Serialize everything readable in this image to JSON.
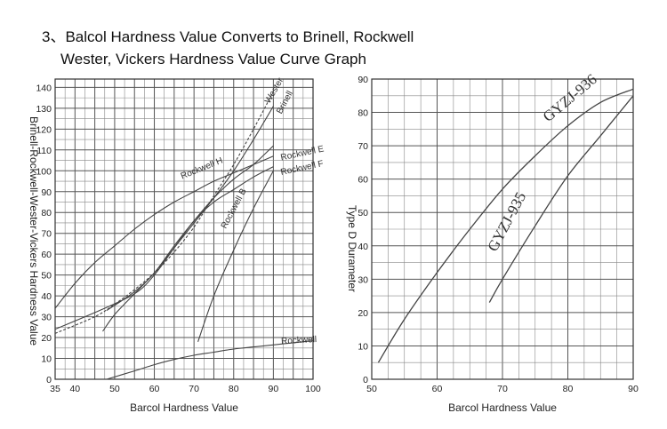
{
  "title": {
    "line1": "3、Balcol Hardness Value Converts to Brinell, Rockwell",
    "line2": "Wester, Vickers Hardness Value Curve Graph"
  },
  "chart_data": [
    {
      "type": "line",
      "xlabel": "Barcol Hardness Value",
      "ylabel": "Brinell-Rockwell-Wester-Vickers Hardness Value",
      "xlim": [
        35,
        100
      ],
      "ylim": [
        0,
        144
      ],
      "x_ticks": [
        35,
        40,
        50,
        60,
        70,
        80,
        90,
        100
      ],
      "y_ticks": [
        0,
        10,
        20,
        30,
        40,
        50,
        60,
        70,
        80,
        90,
        100,
        110,
        120,
        130,
        140
      ],
      "series": [
        {
          "name": "Rockwell H",
          "x": [
            35,
            40,
            45,
            50,
            55,
            60,
            65,
            70,
            75,
            80,
            85,
            90
          ],
          "y": [
            34,
            46,
            56,
            64,
            72,
            79,
            85,
            90,
            95,
            99,
            103,
            107
          ],
          "dash": false,
          "label_at": [
            67,
            96
          ]
        },
        {
          "name": "Wester",
          "x": [
            35,
            45,
            50,
            55,
            60,
            65,
            70,
            75,
            80,
            85,
            90
          ],
          "y": [
            22,
            30,
            36,
            43,
            51,
            61,
            73,
            88,
            103,
            120,
            138
          ],
          "dash": true,
          "label_at": [
            89,
            132
          ]
        },
        {
          "name": "Brinell",
          "x": [
            47,
            50,
            55,
            60,
            65,
            70,
            75,
            80,
            85,
            90
          ],
          "y": [
            23,
            31,
            41,
            51,
            63,
            75,
            87,
            100,
            115,
            131
          ],
          "dash": false,
          "label_at": [
            92,
            127
          ]
        },
        {
          "name": "Rockwell E",
          "x": [
            35,
            45,
            55,
            60,
            65,
            70,
            75,
            80,
            85,
            90
          ],
          "y": [
            24,
            32,
            41,
            50,
            63,
            76,
            85,
            91,
            97,
            102
          ],
          "dash": false,
          "label_at": [
            92,
            105
          ]
        },
        {
          "name": "Rockwell F",
          "x": [
            48,
            55,
            60,
            65,
            70,
            75,
            80,
            85,
            90
          ],
          "y": [
            33,
            42,
            51,
            64,
            76,
            87,
            96,
            103,
            112
          ],
          "dash": false,
          "label_at": [
            92,
            98
          ]
        },
        {
          "name": "Rockwell B",
          "x": [
            71,
            75,
            80,
            85,
            90
          ],
          "y": [
            18,
            40,
            62,
            82,
            100
          ],
          "dash": false,
          "label_at": [
            78,
            72
          ]
        },
        {
          "name": "Rockwell",
          "x": [
            48,
            55,
            60,
            65,
            70,
            75,
            80,
            85,
            90,
            95,
            100
          ],
          "y": [
            0,
            4,
            7,
            9.5,
            11.5,
            13,
            14.5,
            15.5,
            16.5,
            17.5,
            18.5
          ],
          "dash": false,
          "label_at": [
            92,
            17
          ]
        }
      ]
    },
    {
      "type": "line",
      "xlabel": "Barcol Hardness Value",
      "ylabel": "Type D Durameter",
      "xlim": [
        50,
        90
      ],
      "ylim": [
        0,
        90
      ],
      "x_ticks": [
        50,
        60,
        70,
        80,
        90
      ],
      "y_ticks": [
        0,
        10,
        20,
        30,
        40,
        50,
        60,
        70,
        80,
        90
      ],
      "series": [
        {
          "name": "GYZJ-936",
          "x": [
            51,
            55,
            60,
            65,
            70,
            75,
            80,
            85,
            90
          ],
          "y": [
            5,
            18,
            32,
            45,
            57,
            67,
            76,
            83,
            87
          ],
          "label_at": [
            77,
            77
          ]
        },
        {
          "name": "GYZJ-935",
          "x": [
            68,
            70,
            75,
            80,
            85,
            90
          ],
          "y": [
            23,
            30,
            46,
            61,
            73,
            85
          ],
          "label_at": [
            69,
            38
          ]
        }
      ]
    }
  ]
}
